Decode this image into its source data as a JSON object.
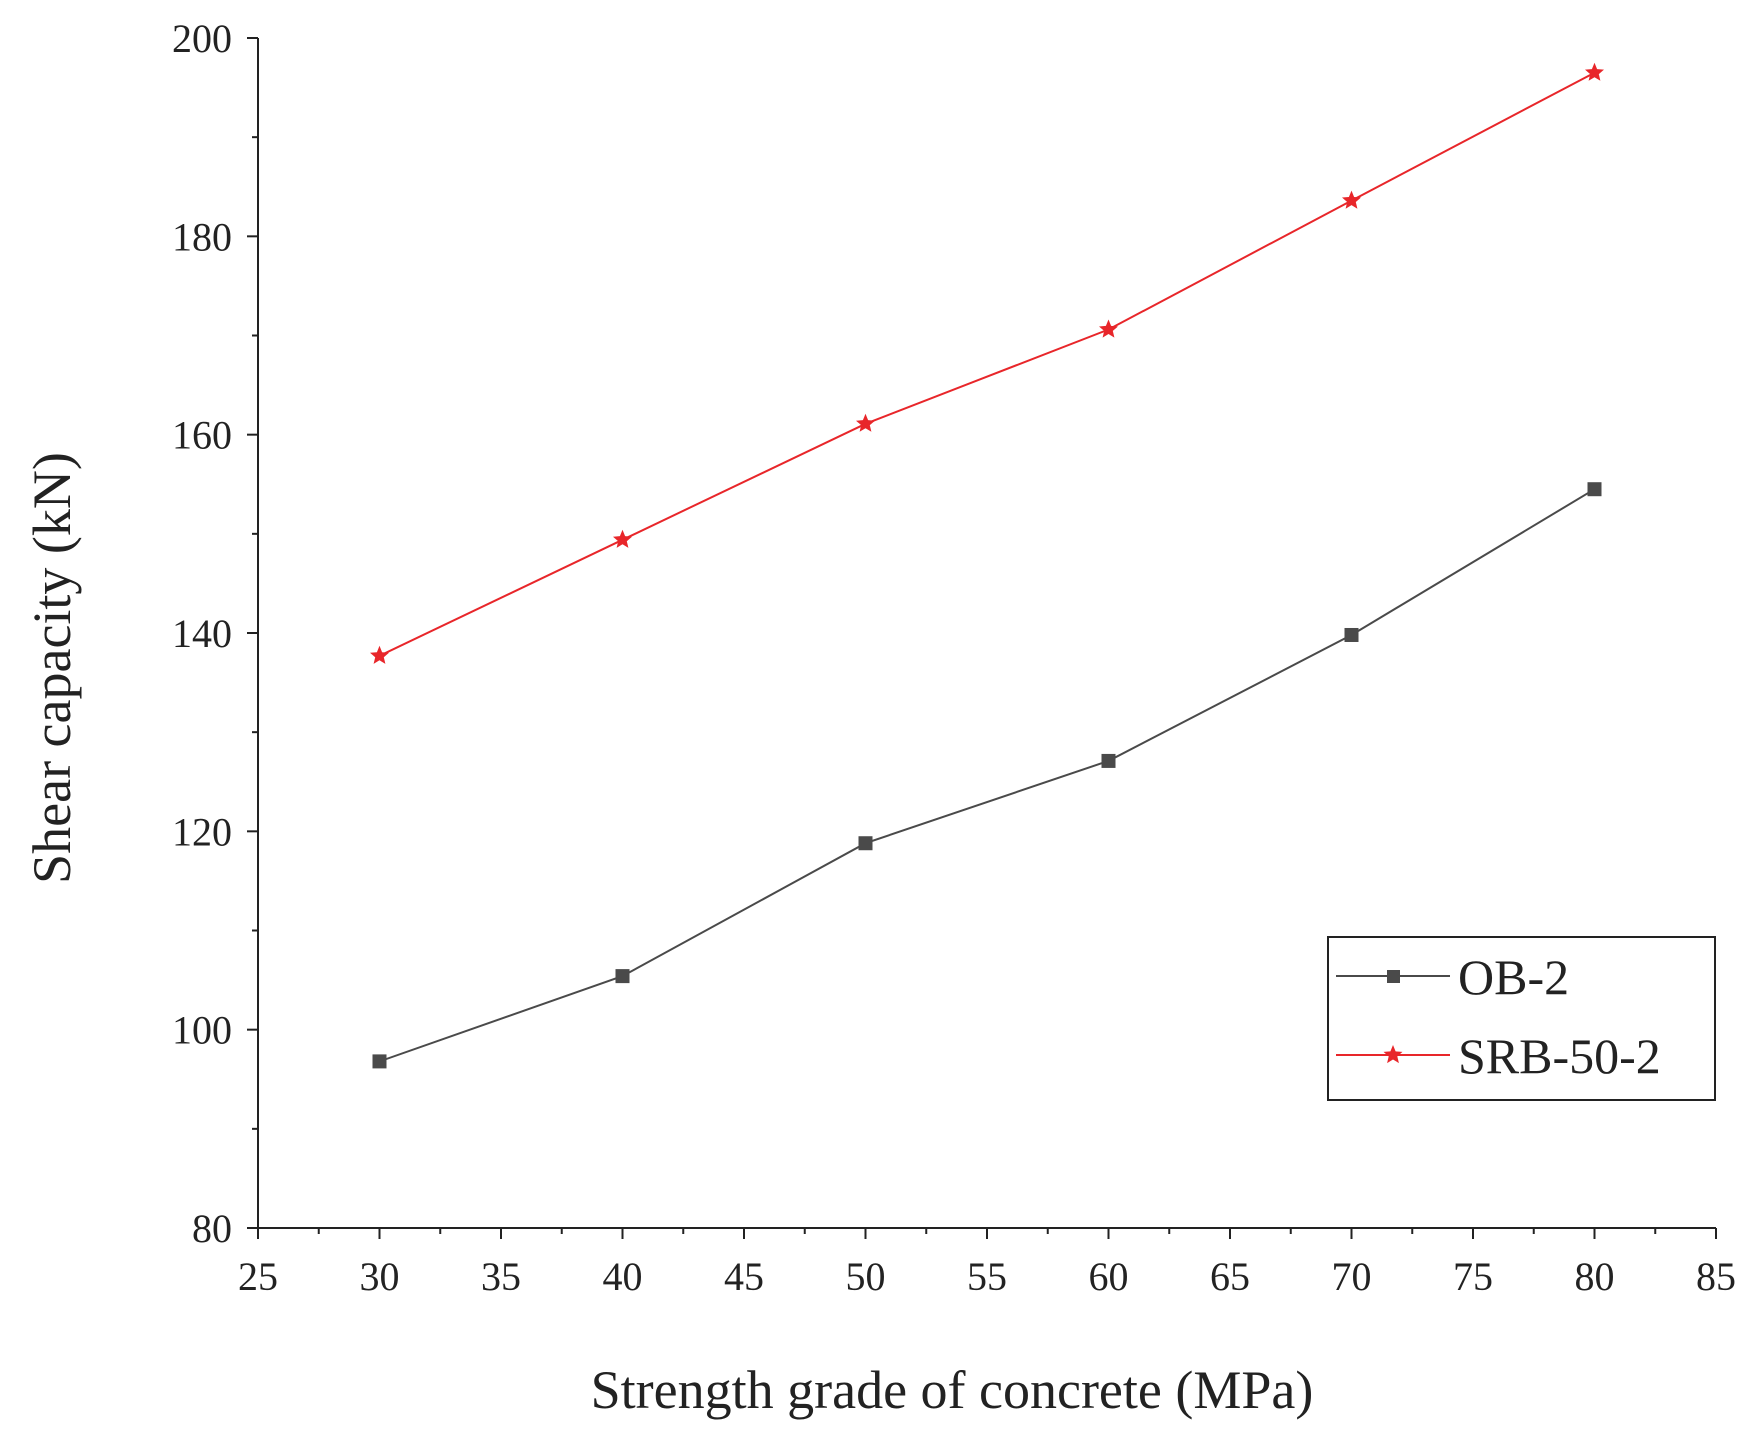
{
  "chart_data": {
    "type": "line",
    "title": "",
    "xlabel": "Strength grade of concrete (MPa)",
    "ylabel": "Shear capacity (kN)",
    "xlim": [
      25,
      85
    ],
    "ylim": [
      80,
      200
    ],
    "x_major_ticks": [
      25,
      30,
      35,
      40,
      45,
      50,
      55,
      60,
      65,
      70,
      75,
      80,
      85
    ],
    "y_major_ticks": [
      80,
      100,
      120,
      140,
      160,
      180,
      200
    ],
    "x": [
      30,
      40,
      50,
      60,
      70,
      80
    ],
    "series": [
      {
        "name": "OB-2",
        "values": [
          96.8,
          105.4,
          118.8,
          127.1,
          139.8,
          154.5
        ],
        "color": "#4a4a4a",
        "marker": "square"
      },
      {
        "name": "SRB-50-2",
        "values": [
          137.7,
          149.4,
          161.1,
          170.6,
          183.6,
          196.5
        ],
        "color": "#e8262a",
        "marker": "star"
      }
    ],
    "legend_position": "bottom-right",
    "grid": false
  }
}
